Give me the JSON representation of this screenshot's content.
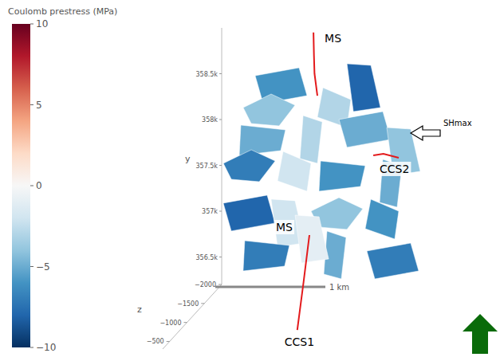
{
  "chart_data": {
    "type": "surface3d",
    "colorbar": {
      "title": "Coulomb prestress (MPa)",
      "range": [
        -10,
        10
      ],
      "ticks": [
        10,
        5,
        0,
        {
          "value": -5,
          "label": "−5"
        },
        {
          "value": -10,
          "label": "−10"
        }
      ]
    },
    "y_label": "y",
    "z_label": "z",
    "ylim": [
      356200,
      359000
    ],
    "yticks": [
      {
        "value": 356500,
        "label": "356.5k"
      },
      {
        "value": 357000,
        "label": "357k"
      },
      {
        "value": 357500,
        "label": "357.5k"
      },
      {
        "value": 358000,
        "label": "358k"
      },
      {
        "value": 358500,
        "label": "358.5k"
      }
    ],
    "zlim": [
      -2000,
      -300
    ],
    "zticks": [
      {
        "value": -2000,
        "label": "−2000"
      },
      {
        "value": -1500,
        "label": "−1500"
      },
      {
        "value": -1000,
        "label": "−1000"
      },
      {
        "value": -500,
        "label": "−500"
      }
    ],
    "scale_bar": {
      "length": 1000,
      "label": "1 km"
    },
    "patches": [
      {
        "x": 554,
        "y": 358348,
        "z": -2000,
        "value": -6
      },
      {
        "x": 1362,
        "y": 358348,
        "z": -2000,
        "value": -8
      },
      {
        "x": 477,
        "y": 358087,
        "z": -2000,
        "value": -4
      },
      {
        "x": 1092,
        "y": 358130,
        "z": -2000,
        "value": -3
      },
      {
        "x": 400,
        "y": 357783,
        "z": -2000,
        "value": -5
      },
      {
        "x": 862,
        "y": 357783,
        "z": -2000,
        "value": -3
      },
      {
        "x": 1362,
        "y": 357870,
        "z": -2000,
        "value": -5
      },
      {
        "x": 1746,
        "y": 357652,
        "z": -2000,
        "value": -4
      },
      {
        "x": 285,
        "y": 357478,
        "z": -2000,
        "value": -7
      },
      {
        "x": 708,
        "y": 357435,
        "z": -2000,
        "value": -2
      },
      {
        "x": 1169,
        "y": 357391,
        "z": -2000,
        "value": -6
      },
      {
        "x": 1631,
        "y": 357304,
        "z": -2000,
        "value": -5
      },
      {
        "x": 246,
        "y": 356957,
        "z": -2000,
        "value": -8
      },
      {
        "x": 631,
        "y": 356870,
        "z": -2000,
        "value": -2
      },
      {
        "x": 1131,
        "y": 356957,
        "z": -2000,
        "value": -4
      },
      {
        "x": 1554,
        "y": 356913,
        "z": -2000,
        "value": -6
      },
      {
        "x": 438,
        "y": 356522,
        "z": -2000,
        "value": -7
      },
      {
        "x": 1092,
        "y": 356522,
        "z": -2000,
        "value": -5
      },
      {
        "x": 1631,
        "y": 356435,
        "z": -2000,
        "value": -7
      },
      {
        "x": 862,
        "y": 356696,
        "z": -2000,
        "value": -1
      }
    ],
    "wells": [
      {
        "labels": [
          "MS"
        ],
        "x": [
          885,
          890,
          895,
          923
        ],
        "y": [
          358950,
          358700,
          358500,
          358260
        ],
        "z": [
          -2000,
          -2000,
          -2000,
          -2000
        ]
      },
      {
        "labels": [
          "MS",
          "CCS1"
        ],
        "x": [
          846,
          990,
          1131
        ],
        "y": [
          356739,
          356470,
          356200
        ],
        "z": [
          -2000,
          -1400,
          -800
        ]
      },
      {
        "labels": [
          "CCS2"
        ],
        "x": [
          1462,
          1560,
          1708
        ],
        "y": [
          357609,
          357625,
          357583
        ],
        "z": [
          -2000,
          -2000,
          -2000
        ]
      }
    ],
    "annotations": [
      {
        "text": "SHmax"
      }
    ]
  }
}
